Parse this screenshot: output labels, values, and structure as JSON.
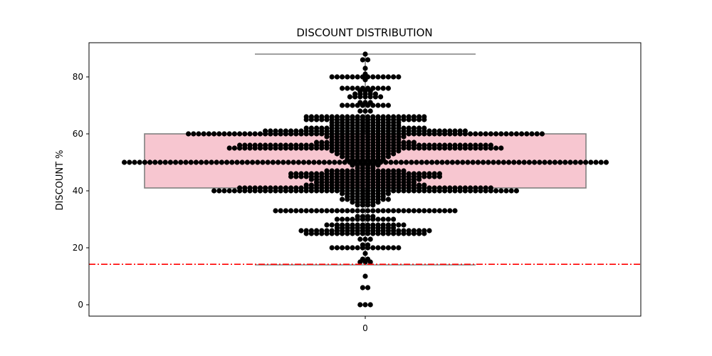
{
  "chart_data": {
    "type": "box_swarm",
    "title": "DISCOUNT DISTRIBUTION",
    "xlabel": "",
    "ylabel": "DISCOUNT %",
    "categories": [
      "0"
    ],
    "ylim": [
      -4,
      92
    ],
    "yticks": [
      0,
      20,
      40,
      60,
      80
    ],
    "grid": false,
    "legend": "none",
    "box": {
      "q1": 41,
      "median": 50,
      "q3": 60,
      "whisker_low": 14,
      "whisker_high": 88
    },
    "reference_line": {
      "y": 14.2,
      "style": "dash-dot",
      "color": "#ff0000"
    },
    "colors": {
      "box_fill": "#f7c6d0",
      "box_edge": "#808080",
      "point": "#000000",
      "reference": "#ff0000"
    },
    "swarm_values": [
      {
        "v": 88,
        "n": 1
      },
      {
        "v": 86,
        "n": 2
      },
      {
        "v": 83,
        "n": 1
      },
      {
        "v": 81,
        "n": 1
      },
      {
        "v": 80,
        "n": 14
      },
      {
        "v": 79,
        "n": 1
      },
      {
        "v": 76,
        "n": 10
      },
      {
        "v": 75,
        "n": 3
      },
      {
        "v": 74,
        "n": 5
      },
      {
        "v": 73,
        "n": 7
      },
      {
        "v": 71,
        "n": 3
      },
      {
        "v": 70,
        "n": 10
      },
      {
        "v": 68,
        "n": 3
      },
      {
        "v": 66,
        "n": 24
      },
      {
        "v": 65,
        "n": 24
      },
      {
        "v": 64,
        "n": 14
      },
      {
        "v": 63,
        "n": 14
      },
      {
        "v": 62,
        "n": 24
      },
      {
        "v": 61,
        "n": 40
      },
      {
        "v": 60,
        "n": 70
      },
      {
        "v": 59,
        "n": 16
      },
      {
        "v": 58,
        "n": 14
      },
      {
        "v": 57,
        "n": 20
      },
      {
        "v": 56,
        "n": 50
      },
      {
        "v": 55,
        "n": 54
      },
      {
        "v": 54,
        "n": 14
      },
      {
        "v": 53,
        "n": 12
      },
      {
        "v": 52,
        "n": 10
      },
      {
        "v": 51,
        "n": 8
      },
      {
        "v": 50,
        "n": 95
      },
      {
        "v": 49,
        "n": 6
      },
      {
        "v": 48,
        "n": 4
      },
      {
        "v": 47,
        "n": 16
      },
      {
        "v": 46,
        "n": 30
      },
      {
        "v": 45,
        "n": 30
      },
      {
        "v": 44,
        "n": 22
      },
      {
        "v": 43,
        "n": 20
      },
      {
        "v": 42,
        "n": 24
      },
      {
        "v": 41,
        "n": 50
      },
      {
        "v": 40,
        "n": 60
      },
      {
        "v": 39,
        "n": 10
      },
      {
        "v": 38,
        "n": 8
      },
      {
        "v": 37,
        "n": 10
      },
      {
        "v": 36,
        "n": 6
      },
      {
        "v": 35,
        "n": 4
      },
      {
        "v": 33,
        "n": 36
      },
      {
        "v": 31,
        "n": 4
      },
      {
        "v": 30,
        "n": 12
      },
      {
        "v": 28,
        "n": 16
      },
      {
        "v": 27,
        "n": 12
      },
      {
        "v": 26,
        "n": 26
      },
      {
        "v": 25,
        "n": 24
      },
      {
        "v": 23,
        "n": 3
      },
      {
        "v": 21,
        "n": 2
      },
      {
        "v": 20,
        "n": 14
      },
      {
        "v": 18,
        "n": 1
      },
      {
        "v": 16,
        "n": 2
      },
      {
        "v": 15,
        "n": 3
      },
      {
        "v": 10,
        "n": 1
      },
      {
        "v": 6,
        "n": 2
      },
      {
        "v": 0,
        "n": 3
      }
    ]
  }
}
